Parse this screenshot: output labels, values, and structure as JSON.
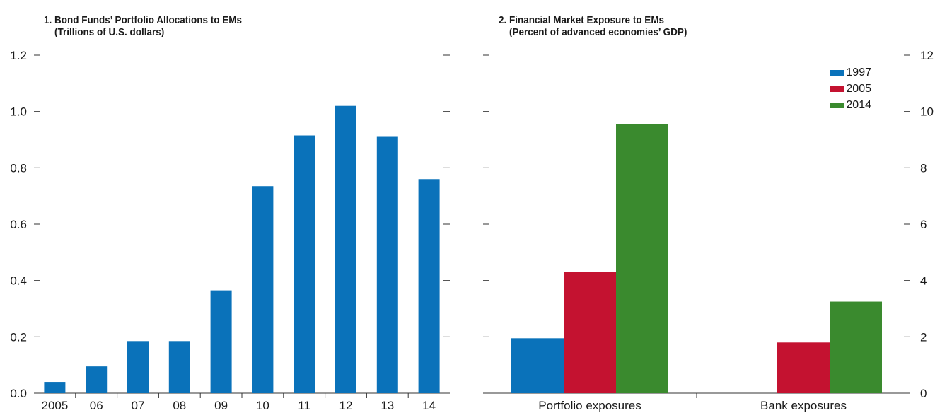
{
  "chart_data": [
    {
      "type": "bar",
      "title_lines": [
        "1. Bond Funds’ Portfolio Allocations to EMs",
        "    (Trillions of U.S. dollars)"
      ],
      "categories": [
        "2005",
        "06",
        "07",
        "08",
        "09",
        "10",
        "11",
        "12",
        "13",
        "14"
      ],
      "series": [
        {
          "values": [
            0.04,
            0.095,
            0.185,
            0.185,
            0.365,
            0.735,
            0.915,
            1.02,
            0.91,
            0.76
          ],
          "color": "#0a72ba"
        }
      ],
      "ylim": [
        0,
        1.2
      ],
      "yticks": [
        "0.0",
        "0.2",
        "0.4",
        "0.6",
        "0.8",
        "1.0",
        "1.2"
      ],
      "y_axis_side": "left",
      "grid": false
    },
    {
      "type": "bar",
      "title_lines": [
        "2. Financial Market Exposure to EMs",
        "    (Percent of advanced economies’ GDP)"
      ],
      "categories": [
        "Portfolio exposures",
        "Bank exposures"
      ],
      "series": [
        {
          "name": "1997",
          "values": [
            1.95,
            null
          ],
          "color": "#0a72ba"
        },
        {
          "name": "2005",
          "values": [
            4.3,
            1.8
          ],
          "color": "#c41230"
        },
        {
          "name": "2014",
          "values": [
            9.55,
            3.25
          ],
          "color": "#3a8a2e"
        }
      ],
      "ylim": [
        0,
        12
      ],
      "yticks": [
        "0",
        "2",
        "4",
        "6",
        "8",
        "10",
        "12"
      ],
      "y_axis_side": "right",
      "legend_position": "top-right",
      "grid": false
    }
  ]
}
